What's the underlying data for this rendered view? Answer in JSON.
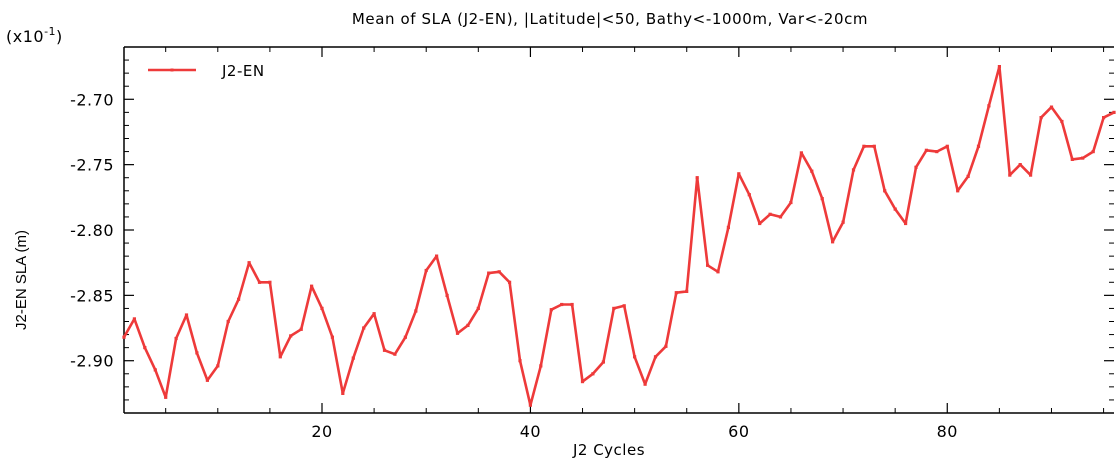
{
  "chart_data": {
    "type": "line",
    "title": "Mean of SLA (J2-EN), |Latitude|<50, Bathy<-1000m, Var<-20cm",
    "scale_label": "(x10",
    "scale_exponent": "-1",
    "scale_close": ")",
    "xlabel": "J2 Cycles",
    "ylabel": "J2-EN SLA (m)",
    "xlim": [
      1,
      96
    ],
    "ylim": [
      -2.94,
      -2.66
    ],
    "xticks": [
      20,
      40,
      60,
      80
    ],
    "xtick_labels": [
      "20",
      "40",
      "60",
      "80"
    ],
    "yticks": [
      -2.9,
      -2.85,
      -2.8,
      -2.75,
      -2.7
    ],
    "ytick_labels": [
      "-2.90",
      "-2.85",
      "-2.80",
      "-2.75",
      "-2.70"
    ],
    "legend_position": "top-left",
    "series": [
      {
        "name": "J2-EN",
        "color": "#ee3a3a",
        "x": [
          1,
          2,
          3,
          4,
          5,
          6,
          7,
          8,
          9,
          10,
          11,
          12,
          13,
          14,
          15,
          16,
          17,
          18,
          19,
          20,
          21,
          22,
          23,
          24,
          25,
          26,
          27,
          28,
          29,
          30,
          31,
          32,
          33,
          34,
          35,
          36,
          37,
          38,
          39,
          40,
          41,
          42,
          43,
          44,
          45,
          46,
          47,
          48,
          49,
          50,
          51,
          52,
          53,
          54,
          55,
          56,
          57,
          58,
          59,
          60,
          61,
          62,
          63,
          64,
          65,
          66,
          67,
          68,
          69,
          70,
          71,
          72,
          73,
          74,
          75,
          76,
          77,
          78,
          79,
          80,
          81,
          82,
          83,
          84,
          85,
          86,
          87,
          88,
          89,
          90,
          91,
          92,
          93,
          94,
          95,
          96
        ],
        "values": [
          -2.882,
          -2.868,
          -2.89,
          -2.907,
          -2.928,
          -2.883,
          -2.865,
          -2.894,
          -2.915,
          -2.904,
          -2.87,
          -2.853,
          -2.825,
          -2.84,
          -2.84,
          -2.897,
          -2.881,
          -2.876,
          -2.843,
          -2.86,
          -2.882,
          -2.925,
          -2.898,
          -2.875,
          -2.864,
          -2.892,
          -2.895,
          -2.882,
          -2.862,
          -2.831,
          -2.82,
          -2.85,
          -2.879,
          -2.873,
          -2.86,
          -2.833,
          -2.832,
          -2.84,
          -2.9,
          -2.934,
          -2.904,
          -2.861,
          -2.857,
          -2.857,
          -2.916,
          -2.91,
          -2.901,
          -2.86,
          -2.858,
          -2.897,
          -2.918,
          -2.897,
          -2.889,
          -2.848,
          -2.847,
          -2.76,
          -2.827,
          -2.832,
          -2.798,
          -2.757,
          -2.773,
          -2.795,
          -2.788,
          -2.79,
          -2.779,
          -2.741,
          -2.755,
          -2.776,
          -2.809,
          -2.794,
          -2.754,
          -2.736,
          -2.736,
          -2.77,
          -2.784,
          -2.795,
          -2.752,
          -2.739,
          -2.74,
          -2.736,
          -2.77,
          -2.759,
          -2.736,
          -2.705,
          -2.675,
          -2.758,
          -2.75,
          -2.758,
          -2.714,
          -2.706,
          -2.717,
          -2.746,
          -2.745,
          -2.74,
          -2.714,
          -2.71
        ]
      }
    ]
  }
}
